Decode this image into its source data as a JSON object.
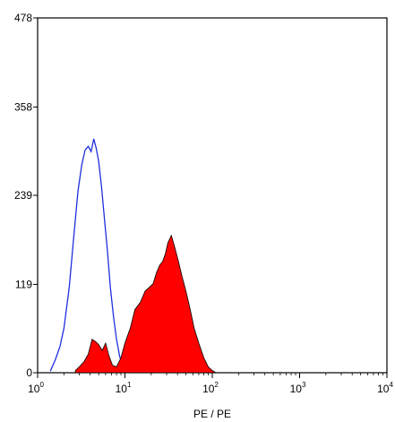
{
  "chart_data": {
    "type": "area",
    "title": "",
    "xlabel": "PE / PE",
    "ylabel": "",
    "x_scale": "log",
    "xlim": [
      1,
      10000
    ],
    "ylim": [
      0,
      478
    ],
    "x_ticks": [
      {
        "value": 1,
        "base": "10",
        "exp": "0"
      },
      {
        "value": 10,
        "base": "10",
        "exp": "1"
      },
      {
        "value": 100,
        "base": "10",
        "exp": "2"
      },
      {
        "value": 1000,
        "base": "10",
        "exp": "3"
      },
      {
        "value": 10000,
        "base": "10",
        "exp": "4"
      }
    ],
    "y_ticks": [
      {
        "value": 0,
        "label": "0"
      },
      {
        "value": 119,
        "label": "119"
      },
      {
        "value": 239,
        "label": "239"
      },
      {
        "value": 358,
        "label": "358"
      },
      {
        "value": 478,
        "label": "478"
      }
    ],
    "grid": false,
    "legend": "none",
    "series": [
      {
        "style": "outline",
        "color": "#1f2fe0",
        "x": [
          1.4,
          1.6,
          1.8,
          2.0,
          2.3,
          2.6,
          2.9,
          3.2,
          3.5,
          3.8,
          4.1,
          4.4,
          4.7,
          5.0,
          5.4,
          5.8,
          6.3,
          6.8,
          7.4,
          8.0,
          8.7,
          9.4,
          10.2,
          11.0
        ],
        "y": [
          2,
          18,
          35,
          60,
          115,
          185,
          245,
          280,
          300,
          305,
          298,
          315,
          302,
          285,
          250,
          210,
          165,
          115,
          75,
          45,
          22,
          10,
          3,
          0
        ]
      },
      {
        "style": "filled",
        "color": "#ff0000",
        "x": [
          2.7,
          3.0,
          3.4,
          3.8,
          4.2,
          4.6,
          5.0,
          5.5,
          6.0,
          6.6,
          7.2,
          8.0,
          9.0,
          10.0,
          11.5,
          13.0,
          15.0,
          17.0,
          19.0,
          21.0,
          23.0,
          25.0,
          27.0,
          29.0,
          31.0,
          34.0,
          37.0,
          41.0,
          45.0,
          50.0,
          56.0,
          62.0,
          70.0,
          80.0,
          90.0,
          100.0,
          110.0
        ],
        "y": [
          3,
          8,
          15,
          25,
          45,
          42,
          38,
          30,
          40,
          22,
          10,
          8,
          20,
          40,
          60,
          85,
          95,
          110,
          115,
          120,
          135,
          145,
          150,
          160,
          175,
          185,
          170,
          150,
          130,
          110,
          85,
          60,
          40,
          20,
          8,
          3,
          0
        ]
      }
    ]
  }
}
